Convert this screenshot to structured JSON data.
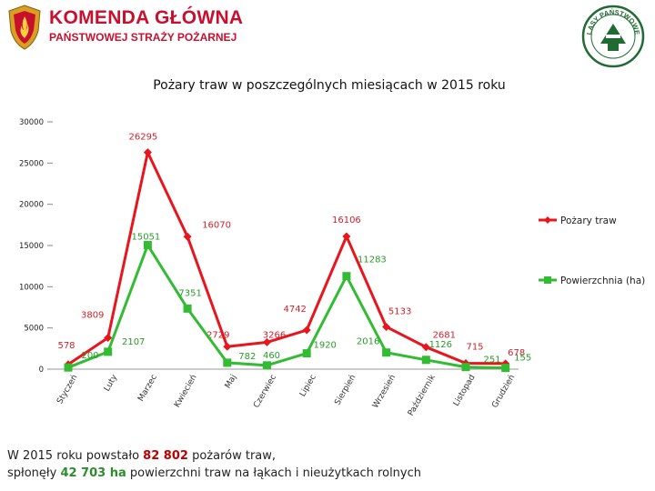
{
  "header": {
    "org_name": "KOMENDA GŁÓWNA",
    "org_sub": "PAŃSTWOWEJ STRAŻY POŻARNEJ",
    "logo_left_icon": "fire-service-emblem-icon",
    "logo_right_icon": "state-forests-emblem-icon",
    "logo_right_text": "LASY PAŃSTWOWE"
  },
  "chart_data": {
    "type": "line",
    "title": "Pożary traw w poszczególnych miesiącach w 2015 roku",
    "categories": [
      "Styczeń",
      "Luty",
      "Marzec",
      "Kwiecień",
      "Maj",
      "Czerwiec",
      "Lipiec",
      "Sierpień",
      "Wrzesień",
      "Październik",
      "Listopad",
      "Grudzień"
    ],
    "ylim": [
      0,
      30000
    ],
    "yticks": [
      0,
      5000,
      10000,
      15000,
      20000,
      25000,
      30000
    ],
    "legend_position": "right",
    "series": [
      {
        "name": "Pożary traw",
        "color": "#e8151c",
        "marker": "diamond",
        "values": [
          578,
          3809,
          26295,
          16070,
          2729,
          3266,
          4742,
          16106,
          5133,
          2681,
          715,
          678
        ]
      },
      {
        "name": "Powierzchnia (ha)",
        "color": "#33bb33",
        "marker": "square",
        "values": [
          200,
          2107,
          15051,
          7351,
          782,
          460,
          1920,
          11283,
          2016,
          1126,
          251,
          155
        ]
      }
    ]
  },
  "footer": {
    "line1_a": "W 2015 roku powstało ",
    "line1_b": "82 802",
    "line1_c": " pożarów traw,",
    "line2_a": "spłonęły ",
    "line2_b": "42 703 ha",
    "line2_c": " powierzchni traw na łąkach i nieużytkach rolnych"
  }
}
